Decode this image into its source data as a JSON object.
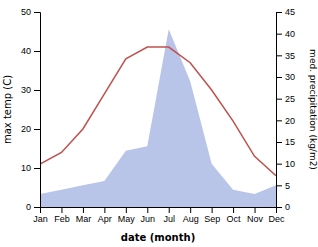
{
  "chart_data": {
    "type": "line",
    "x_label": "date (month)",
    "y_label": "max temp (C)",
    "y2_label": "med. precipitation (kg/m2)",
    "categories": [
      "Jan",
      "Feb",
      "Mar",
      "Apr",
      "May",
      "Jun",
      "Jul",
      "Aug",
      "Sep",
      "Oct",
      "Nov",
      "Dec"
    ],
    "series": [
      {
        "type": "area",
        "axis": "y2",
        "color": "#b8c4e8",
        "values": [
          3,
          4,
          5,
          6,
          13,
          14,
          41,
          29,
          10,
          4,
          3,
          5
        ]
      },
      {
        "type": "line",
        "color": "#c0504d",
        "values": [
          11,
          14,
          20,
          29,
          38,
          41,
          41,
          37,
          30,
          22,
          13,
          8
        ]
      }
    ],
    "ylim": [
      0,
      50
    ],
    "yticks": [
      0,
      10,
      20,
      30,
      40,
      50
    ],
    "y2lim": [
      0,
      45
    ],
    "y2ticks": [
      0,
      5,
      10,
      15,
      20,
      25,
      30,
      35,
      40,
      45
    ],
    "grid": false
  }
}
